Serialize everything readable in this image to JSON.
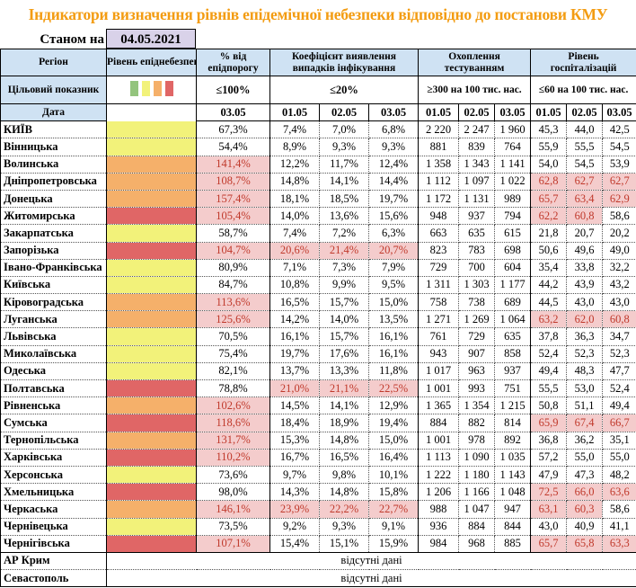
{
  "title": "Індикатори визначення рівнів епідемічної небезпеки відповідно до постанови КМУ",
  "as_of_label": "Станом на",
  "as_of_date": "04.05.2021",
  "headers": {
    "region": "Регіон",
    "level": "Рівень епіднебезпеки",
    "pct": "% від епідпорогу",
    "coef": "Коефіцієнт виявлення випадків інфікування",
    "testing": "Охоплення тестуванням",
    "hosp": "Рівень госпіталізацій"
  },
  "targets": {
    "label": "Цільовий показник",
    "pct": "≤100%",
    "coef": "≤20%",
    "testing": "≥300 на 100 тис. нас.",
    "hosp": "≤60 на 100 тис. нас."
  },
  "level_colors": {
    "green": "#93c47d",
    "yellow": "#f2f27a",
    "orange": "#f5b06a",
    "red": "#e06666"
  },
  "legend": [
    "green",
    "yellow",
    "orange",
    "red"
  ],
  "dates": {
    "label": "Дата",
    "pct": [
      "03.05"
    ],
    "coef": [
      "01.05",
      "02.05",
      "03.05"
    ],
    "testing": [
      "01.05",
      "02.05",
      "03.05"
    ],
    "hosp": [
      "01.05",
      "02.05",
      "03.05"
    ]
  },
  "rows": [
    {
      "region": "КИЇВ",
      "level": "yellow",
      "values": [
        "67,3%",
        "7,4%",
        "7,0%",
        "6,8%",
        "2 220",
        "2 247",
        "1 960",
        "45,3",
        "44,0",
        "42,5"
      ],
      "alerts": []
    },
    {
      "region": "Вінницька",
      "level": "yellow",
      "values": [
        "54,4%",
        "8,9%",
        "9,3%",
        "9,3%",
        "881",
        "839",
        "764",
        "55,9",
        "55,5",
        "54,5"
      ],
      "alerts": []
    },
    {
      "region": "Волинська",
      "level": "orange",
      "values": [
        "141,4%",
        "12,2%",
        "11,7%",
        "12,4%",
        "1 358",
        "1 343",
        "1 141",
        "54,0",
        "54,5",
        "53,9"
      ],
      "alerts": [
        0
      ]
    },
    {
      "region": "Дніпропетровська",
      "level": "orange",
      "values": [
        "108,7%",
        "14,8%",
        "14,1%",
        "14,4%",
        "1 112",
        "1 097",
        "1 022",
        "62,8",
        "62,7",
        "62,7"
      ],
      "alerts": [
        0,
        7,
        8,
        9
      ]
    },
    {
      "region": "Донецька",
      "level": "orange",
      "values": [
        "157,4%",
        "18,1%",
        "18,5%",
        "19,7%",
        "1 172",
        "1 131",
        "989",
        "65,7",
        "63,4",
        "62,9"
      ],
      "alerts": [
        0,
        7,
        8,
        9
      ]
    },
    {
      "region": "Житомирська",
      "level": "red",
      "values": [
        "105,4%",
        "14,0%",
        "13,6%",
        "15,6%",
        "948",
        "937",
        "794",
        "62,2",
        "60,8",
        "58,6"
      ],
      "alerts": [
        0,
        7,
        8
      ]
    },
    {
      "region": "Закарпатська",
      "level": "yellow",
      "values": [
        "58,7%",
        "7,4%",
        "7,2%",
        "6,3%",
        "663",
        "635",
        "615",
        "21,8",
        "20,7",
        "20,2"
      ],
      "alerts": []
    },
    {
      "region": "Запорізька",
      "level": "red",
      "values": [
        "104,7%",
        "20,6%",
        "21,4%",
        "20,7%",
        "823",
        "783",
        "698",
        "50,6",
        "49,6",
        "49,0"
      ],
      "alerts": [
        0,
        1,
        2,
        3
      ]
    },
    {
      "region": "Івано-Франківська",
      "level": "yellow",
      "values": [
        "80,9%",
        "7,1%",
        "7,3%",
        "7,9%",
        "729",
        "700",
        "604",
        "35,4",
        "33,8",
        "32,2"
      ],
      "alerts": []
    },
    {
      "region": "Київська",
      "level": "yellow",
      "values": [
        "84,7%",
        "10,8%",
        "9,9%",
        "9,5%",
        "1 311",
        "1 303",
        "1 177",
        "44,2",
        "43,9",
        "43,2"
      ],
      "alerts": []
    },
    {
      "region": "Кіровоградська",
      "level": "orange",
      "values": [
        "113,6%",
        "16,5%",
        "15,7%",
        "15,0%",
        "758",
        "738",
        "689",
        "44,5",
        "43,0",
        "43,0"
      ],
      "alerts": [
        0
      ]
    },
    {
      "region": "Луганська",
      "level": "orange",
      "values": [
        "125,6%",
        "14,2%",
        "14,0%",
        "13,5%",
        "1 271",
        "1 269",
        "1 064",
        "63,2",
        "62,0",
        "60,8"
      ],
      "alerts": [
        0,
        7,
        8,
        9
      ]
    },
    {
      "region": "Львівська",
      "level": "yellow",
      "values": [
        "70,5%",
        "16,1%",
        "15,7%",
        "16,1%",
        "761",
        "729",
        "635",
        "37,8",
        "36,3",
        "34,7"
      ],
      "alerts": []
    },
    {
      "region": "Миколаївська",
      "level": "yellow",
      "values": [
        "75,4%",
        "19,7%",
        "17,6%",
        "16,1%",
        "943",
        "907",
        "858",
        "52,4",
        "52,3",
        "52,3"
      ],
      "alerts": []
    },
    {
      "region": "Одеська",
      "level": "yellow",
      "values": [
        "82,1%",
        "13,7%",
        "13,3%",
        "11,8%",
        "1 017",
        "963",
        "937",
        "49,4",
        "48,3",
        "47,7"
      ],
      "alerts": []
    },
    {
      "region": "Полтавська",
      "level": "red",
      "values": [
        "78,8%",
        "21,0%",
        "21,1%",
        "22,5%",
        "1 001",
        "993",
        "751",
        "55,5",
        "53,0",
        "52,4"
      ],
      "alerts": [
        1,
        2,
        3
      ]
    },
    {
      "region": "Рівненська",
      "level": "orange",
      "values": [
        "102,6%",
        "14,5%",
        "14,1%",
        "12,9%",
        "1 365",
        "1 354",
        "1 215",
        "50,8",
        "51,1",
        "49,4"
      ],
      "alerts": [
        0
      ]
    },
    {
      "region": "Сумська",
      "level": "red",
      "values": [
        "118,6%",
        "18,4%",
        "18,9%",
        "19,4%",
        "884",
        "882",
        "814",
        "65,9",
        "67,4",
        "66,7"
      ],
      "alerts": [
        0,
        7,
        8,
        9
      ]
    },
    {
      "region": "Тернопільська",
      "level": "orange",
      "values": [
        "131,7%",
        "15,3%",
        "14,8%",
        "15,0%",
        "1 001",
        "978",
        "892",
        "36,8",
        "36,2",
        "35,1"
      ],
      "alerts": [
        0
      ]
    },
    {
      "region": "Харківська",
      "level": "red",
      "values": [
        "110,2%",
        "16,7%",
        "16,5%",
        "16,4%",
        "1 113",
        "1 090",
        "1 035",
        "57,2",
        "55,0",
        "55,0"
      ],
      "alerts": [
        0
      ]
    },
    {
      "region": "Херсонська",
      "level": "yellow",
      "values": [
        "73,6%",
        "9,7%",
        "9,8%",
        "10,1%",
        "1 222",
        "1 180",
        "1 143",
        "47,9",
        "47,3",
        "48,2"
      ],
      "alerts": []
    },
    {
      "region": "Хмельницька",
      "level": "red",
      "values": [
        "98,0%",
        "14,3%",
        "14,8%",
        "15,8%",
        "1 206",
        "1 166",
        "1 048",
        "72,5",
        "66,0",
        "63,6"
      ],
      "alerts": [
        7,
        8,
        9
      ]
    },
    {
      "region": "Черкаська",
      "level": "orange",
      "values": [
        "146,1%",
        "23,9%",
        "22,2%",
        "22,7%",
        "988",
        "1 047",
        "947",
        "63,1",
        "60,3",
        "58,6"
      ],
      "alerts": [
        0,
        1,
        2,
        3,
        7,
        8
      ]
    },
    {
      "region": "Чернівецька",
      "level": "yellow",
      "values": [
        "73,5%",
        "9,2%",
        "9,3%",
        "9,1%",
        "936",
        "884",
        "844",
        "43,0",
        "40,9",
        "41,1"
      ],
      "alerts": []
    },
    {
      "region": "Чернігівська",
      "level": "red",
      "values": [
        "107,1%",
        "15,4%",
        "15,1%",
        "15,9%",
        "984",
        "968",
        "885",
        "65,7",
        "65,8",
        "63,3"
      ],
      "alerts": [
        0,
        7,
        8,
        9
      ]
    }
  ],
  "missing_rows": [
    {
      "region": "АР Крим",
      "note": "відсутні дані"
    },
    {
      "region": "Севастополь",
      "note": "відсутні дані"
    }
  ]
}
